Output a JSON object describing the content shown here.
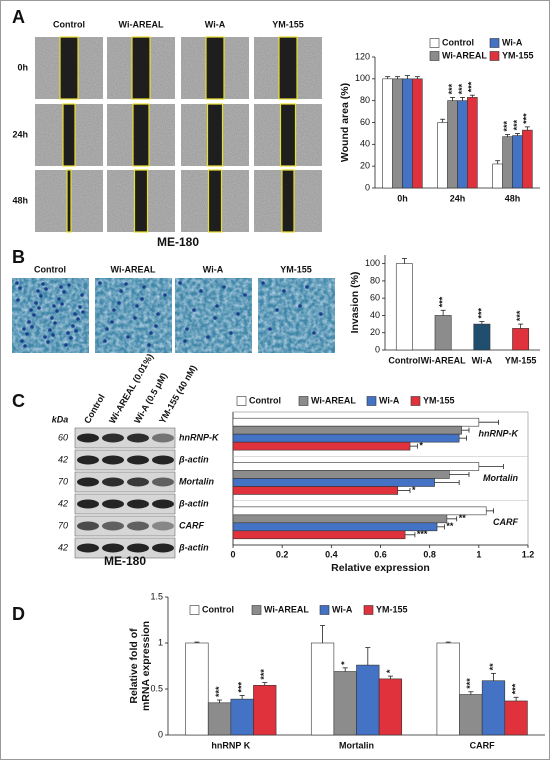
{
  "figure": {
    "panels": [
      "A",
      "B",
      "C",
      "D"
    ]
  },
  "wound_images": {
    "columns": [
      "Control",
      "Wi-AREAL",
      "Wi-A",
      "YM-155"
    ],
    "rows": [
      "0h",
      "24h",
      "48h"
    ],
    "caption": "ME-180"
  },
  "invasion_images": {
    "columns": [
      "Control",
      "Wi-AREAL",
      "Wi-A",
      "YM-155"
    ]
  },
  "blot": {
    "unit": "kDa",
    "columns": [
      "Control",
      "Wi-AREAL (0.01%)",
      "Wi-A (0.5 μM)",
      "YM-155 (40 nM)"
    ],
    "markers": [
      60,
      42,
      70,
      42,
      70,
      42
    ],
    "bands": [
      "hnRNP-K",
      "β-actin",
      "Mortalin",
      "β-actin",
      "CARF",
      "β-actin"
    ],
    "caption": "ME-180"
  },
  "chart_data": [
    {
      "type": "bar",
      "ylabel": "Wound area (%)",
      "categories": [
        "0h",
        "24h",
        "48h"
      ],
      "ylim": [
        0,
        120
      ],
      "yticks": [
        0,
        20,
        40,
        60,
        80,
        100,
        120
      ],
      "legend": "upper right",
      "series": [
        {
          "name": "Control",
          "color": "#ffffff",
          "values": [
            100,
            60,
            22
          ],
          "errors": [
            2,
            3,
            3
          ],
          "significance": [
            null,
            null,
            null
          ]
        },
        {
          "name": "Wi-AREAL",
          "color": "#8c8c8c",
          "values": [
            100,
            80,
            47
          ],
          "errors": [
            2,
            3,
            2
          ],
          "significance": [
            null,
            "***",
            "***"
          ]
        },
        {
          "name": "Wi-A",
          "color": "#4472c4",
          "values": [
            100,
            80,
            48
          ],
          "errors": [
            3,
            3,
            2
          ],
          "significance": [
            null,
            "***",
            "***"
          ]
        },
        {
          "name": "YM-155",
          "color": "#e0323c",
          "values": [
            100,
            83,
            53
          ],
          "errors": [
            2,
            2,
            3
          ],
          "significance": [
            null,
            "***",
            "***"
          ]
        }
      ]
    },
    {
      "type": "bar",
      "ylabel": "Invasion (%)",
      "categories": [
        "Control",
        "Wi-AREAL",
        "Wi-A",
        "YM-155"
      ],
      "ylim": [
        0,
        110
      ],
      "yticks": [
        0,
        20,
        40,
        60,
        80,
        100
      ],
      "values": [
        100,
        40,
        30,
        25
      ],
      "errors": [
        6,
        6,
        3,
        5
      ],
      "colors": [
        "#ffffff",
        "#8c8c8c",
        "#1f4e6e",
        "#e0323c"
      ],
      "significance": [
        null,
        "***",
        "***",
        "***"
      ]
    },
    {
      "type": "barh",
      "xlabel": "Relative expression",
      "categories": [
        "hnRNP-K",
        "Mortalin",
        "CARF"
      ],
      "xlim": [
        0,
        1.2
      ],
      "xticks": [
        0,
        0.2,
        0.4,
        0.6,
        0.8,
        1,
        1.2
      ],
      "legend": "top",
      "series": [
        {
          "name": "Control",
          "color": "#ffffff",
          "values": [
            1.0,
            1.0,
            1.03
          ],
          "errors": [
            0.08,
            0.1,
            0.03
          ],
          "significance": [
            null,
            null,
            null
          ]
        },
        {
          "name": "Wi-AREAL",
          "color": "#8c8c8c",
          "values": [
            0.93,
            0.88,
            0.87
          ],
          "errors": [
            0.03,
            0.08,
            0.04
          ],
          "significance": [
            null,
            null,
            "**"
          ]
        },
        {
          "name": "Wi-A",
          "color": "#4472c4",
          "values": [
            0.92,
            0.82,
            0.83
          ],
          "errors": [
            0.03,
            0.1,
            0.03
          ],
          "significance": [
            null,
            null,
            "**"
          ]
        },
        {
          "name": "YM-155",
          "color": "#e0323c",
          "values": [
            0.72,
            0.67,
            0.7
          ],
          "errors": [
            0.03,
            0.05,
            0.04
          ],
          "significance": [
            "*",
            "*",
            "***"
          ]
        }
      ]
    },
    {
      "type": "bar",
      "ylabel": [
        "Relative fold of",
        "mRNA expression"
      ],
      "categories": [
        "hnRNP K",
        "Mortalin",
        "CARF"
      ],
      "ylim": [
        0,
        1.5
      ],
      "yticks": [
        0,
        0.5,
        1,
        1.5
      ],
      "legend": "top",
      "series": [
        {
          "name": "Control",
          "color": "#ffffff",
          "values": [
            1.0,
            1.0,
            1.0
          ],
          "errors": [
            0.01,
            0.19,
            0.01
          ],
          "significance": [
            null,
            null,
            null
          ]
        },
        {
          "name": "Wi-AREAL",
          "color": "#8c8c8c",
          "values": [
            0.35,
            0.69,
            0.44
          ],
          "errors": [
            0.03,
            0.04,
            0.03
          ],
          "significance": [
            "***",
            "*",
            "***"
          ]
        },
        {
          "name": "Wi-A",
          "color": "#4472c4",
          "values": [
            0.39,
            0.76,
            0.59
          ],
          "errors": [
            0.04,
            0.19,
            0.08
          ],
          "significance": [
            "***",
            null,
            "**"
          ]
        },
        {
          "name": "YM-155",
          "color": "#e0323c",
          "values": [
            0.54,
            0.61,
            0.37
          ],
          "errors": [
            0.03,
            0.03,
            0.04
          ],
          "significance": [
            "***",
            "*",
            "***"
          ]
        }
      ]
    }
  ]
}
